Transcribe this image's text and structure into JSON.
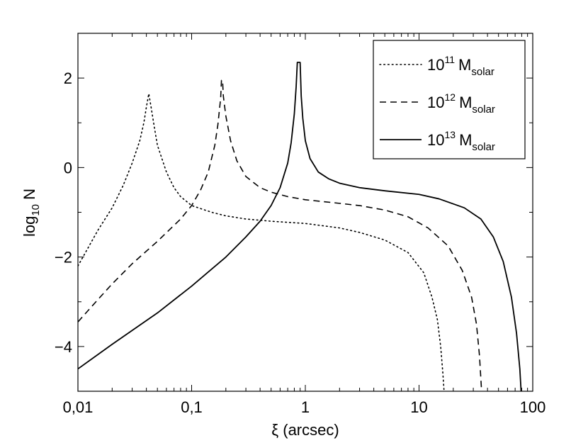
{
  "chart_data": {
    "type": "line",
    "title": "",
    "xlabel": "ξ (arcsec)",
    "ylabel_base": "log",
    "ylabel_sub": "10",
    "ylabel_tail": " N",
    "xscale": "log",
    "xlim": [
      0.01,
      100
    ],
    "ylim": [
      -5,
      3
    ],
    "xticks": [
      {
        "value": 0.01,
        "label": "0,01"
      },
      {
        "value": 0.1,
        "label": "0,1"
      },
      {
        "value": 1,
        "label": "1"
      },
      {
        "value": 10,
        "label": "10"
      },
      {
        "value": 100,
        "label": "100"
      }
    ],
    "yticks": [
      {
        "value": -4,
        "label": "−4"
      },
      {
        "value": -2,
        "label": "−2"
      },
      {
        "value": 0,
        "label": "0"
      },
      {
        "value": 2,
        "label": "2"
      }
    ],
    "legend_position": "top-right",
    "series": [
      {
        "name": "10^11 M_solar",
        "legend_base": "10",
        "legend_exp": "11",
        "legend_unit": "M",
        "legend_sub": "solar",
        "style": "dotted",
        "points": [
          [
            0.01,
            -2.2
          ],
          [
            0.015,
            -1.4
          ],
          [
            0.02,
            -0.9
          ],
          [
            0.025,
            -0.4
          ],
          [
            0.03,
            0.1
          ],
          [
            0.035,
            0.6
          ],
          [
            0.038,
            1.0
          ],
          [
            0.04,
            1.35
          ],
          [
            0.042,
            1.65
          ],
          [
            0.044,
            1.35
          ],
          [
            0.047,
            0.9
          ],
          [
            0.05,
            0.5
          ],
          [
            0.06,
            -0.1
          ],
          [
            0.07,
            -0.45
          ],
          [
            0.08,
            -0.65
          ],
          [
            0.1,
            -0.85
          ],
          [
            0.15,
            -1.0
          ],
          [
            0.2,
            -1.08
          ],
          [
            0.3,
            -1.15
          ],
          [
            0.5,
            -1.2
          ],
          [
            1,
            -1.25
          ],
          [
            2,
            -1.35
          ],
          [
            3,
            -1.45
          ],
          [
            5,
            -1.62
          ],
          [
            8,
            -1.9
          ],
          [
            11,
            -2.35
          ],
          [
            13,
            -2.9
          ],
          [
            14.5,
            -3.4
          ],
          [
            15.5,
            -4.0
          ],
          [
            16.2,
            -4.6
          ],
          [
            16.6,
            -5.0
          ]
        ]
      },
      {
        "name": "10^12 M_solar",
        "legend_base": "10",
        "legend_exp": "12",
        "legend_unit": "M",
        "legend_sub": "solar",
        "style": "dashed",
        "points": [
          [
            0.01,
            -3.45
          ],
          [
            0.015,
            -2.95
          ],
          [
            0.02,
            -2.6
          ],
          [
            0.03,
            -2.15
          ],
          [
            0.05,
            -1.65
          ],
          [
            0.08,
            -1.15
          ],
          [
            0.1,
            -0.85
          ],
          [
            0.12,
            -0.5
          ],
          [
            0.14,
            -0.1
          ],
          [
            0.16,
            0.5
          ],
          [
            0.17,
            0.95
          ],
          [
            0.18,
            1.55
          ],
          [
            0.183,
            1.95
          ],
          [
            0.187,
            1.95
          ],
          [
            0.19,
            1.6
          ],
          [
            0.2,
            1.15
          ],
          [
            0.22,
            0.6
          ],
          [
            0.25,
            0.15
          ],
          [
            0.3,
            -0.2
          ],
          [
            0.4,
            -0.45
          ],
          [
            0.5,
            -0.55
          ],
          [
            0.7,
            -0.65
          ],
          [
            1,
            -0.72
          ],
          [
            2,
            -0.8
          ],
          [
            3,
            -0.85
          ],
          [
            5,
            -0.95
          ],
          [
            8,
            -1.1
          ],
          [
            12,
            -1.35
          ],
          [
            18,
            -1.75
          ],
          [
            24,
            -2.3
          ],
          [
            29,
            -2.9
          ],
          [
            32,
            -3.5
          ],
          [
            34,
            -4.2
          ],
          [
            35.5,
            -5.0
          ]
        ]
      },
      {
        "name": "10^13 M_solar",
        "legend_base": "10",
        "legend_exp": "13",
        "legend_unit": "M",
        "legend_sub": "solar",
        "style": "solid",
        "points": [
          [
            0.01,
            -4.5
          ],
          [
            0.02,
            -3.95
          ],
          [
            0.05,
            -3.25
          ],
          [
            0.1,
            -2.65
          ],
          [
            0.2,
            -2.0
          ],
          [
            0.3,
            -1.55
          ],
          [
            0.4,
            -1.2
          ],
          [
            0.5,
            -0.85
          ],
          [
            0.6,
            -0.45
          ],
          [
            0.7,
            0.1
          ],
          [
            0.75,
            0.55
          ],
          [
            0.8,
            1.2
          ],
          [
            0.83,
            1.8
          ],
          [
            0.85,
            2.35
          ],
          [
            0.9,
            2.35
          ],
          [
            0.92,
            1.6
          ],
          [
            0.95,
            1.1
          ],
          [
            1.0,
            0.6
          ],
          [
            1.1,
            0.2
          ],
          [
            1.3,
            -0.1
          ],
          [
            1.6,
            -0.25
          ],
          [
            2,
            -0.35
          ],
          [
            3,
            -0.45
          ],
          [
            5,
            -0.52
          ],
          [
            10,
            -0.6
          ],
          [
            15,
            -0.7
          ],
          [
            25,
            -0.9
          ],
          [
            35,
            -1.15
          ],
          [
            45,
            -1.55
          ],
          [
            55,
            -2.1
          ],
          [
            65,
            -2.9
          ],
          [
            72,
            -3.7
          ],
          [
            77,
            -4.5
          ],
          [
            79,
            -5.0
          ]
        ]
      }
    ]
  }
}
